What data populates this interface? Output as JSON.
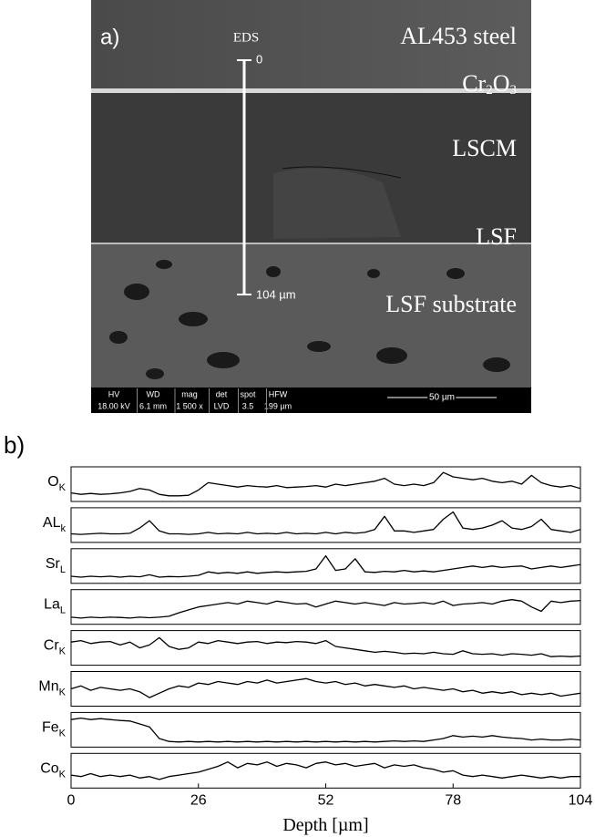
{
  "figure_a": {
    "panel_label": "a)",
    "eds_label": "EDS",
    "eds_start": "0",
    "eds_end": "104 µm",
    "layers": {
      "steel": "AL453 steel",
      "oxide_parts": [
        "Cr",
        "2",
        "O",
        "3"
      ],
      "lscm": "LSCM",
      "lsf": "LSF",
      "substrate": "LSF substrate"
    },
    "info_bar": {
      "headers": [
        "HV",
        "WD",
        "mag",
        "det",
        "spot",
        "HFW"
      ],
      "values": [
        "18.00 kV",
        "6.1 mm",
        "1 500 x",
        "LVD",
        "3.5",
        "199 µm"
      ]
    },
    "scale_bar": "50 µm"
  },
  "chart_data": {
    "type": "line",
    "panel_label": "b)",
    "xlabel": "Depth [µm]",
    "xlim": [
      0,
      104
    ],
    "xticks": [
      0,
      26,
      52,
      78,
      104
    ],
    "ylim": [
      0,
      1
    ],
    "color": "#000000",
    "x": [
      0,
      2,
      4,
      6,
      8,
      10,
      12,
      14,
      16,
      18,
      20,
      22,
      24,
      26,
      28,
      30,
      32,
      34,
      36,
      38,
      40,
      42,
      44,
      46,
      48,
      50,
      52,
      54,
      56,
      58,
      60,
      62,
      64,
      66,
      68,
      70,
      72,
      74,
      76,
      78,
      80,
      82,
      84,
      86,
      88,
      90,
      92,
      94,
      96,
      98,
      100,
      102,
      104
    ],
    "series": [
      {
        "name": "O",
        "subscript": "K",
        "values": [
          0.2,
          0.15,
          0.18,
          0.15,
          0.17,
          0.2,
          0.25,
          0.35,
          0.3,
          0.15,
          0.1,
          0.1,
          0.12,
          0.3,
          0.55,
          0.5,
          0.45,
          0.4,
          0.45,
          0.42,
          0.4,
          0.45,
          0.38,
          0.4,
          0.42,
          0.45,
          0.4,
          0.5,
          0.45,
          0.5,
          0.55,
          0.6,
          0.7,
          0.5,
          0.45,
          0.5,
          0.45,
          0.55,
          0.9,
          0.75,
          0.7,
          0.65,
          0.7,
          0.6,
          0.55,
          0.6,
          0.5,
          0.8,
          0.55,
          0.45,
          0.4,
          0.45,
          0.35
        ]
      },
      {
        "name": "AL",
        "subscript": "k",
        "values": [
          0.2,
          0.18,
          0.2,
          0.22,
          0.2,
          0.2,
          0.22,
          0.4,
          0.65,
          0.3,
          0.2,
          0.2,
          0.18,
          0.2,
          0.25,
          0.2,
          0.22,
          0.2,
          0.25,
          0.2,
          0.22,
          0.2,
          0.25,
          0.2,
          0.22,
          0.2,
          0.25,
          0.2,
          0.25,
          0.22,
          0.25,
          0.35,
          0.8,
          0.3,
          0.3,
          0.25,
          0.3,
          0.35,
          0.7,
          0.95,
          0.4,
          0.35,
          0.4,
          0.5,
          0.65,
          0.4,
          0.35,
          0.45,
          0.7,
          0.35,
          0.3,
          0.25,
          0.35
        ]
      },
      {
        "name": "Sr",
        "subscript": "L",
        "values": [
          0.15,
          0.12,
          0.15,
          0.13,
          0.15,
          0.12,
          0.15,
          0.13,
          0.2,
          0.12,
          0.14,
          0.13,
          0.15,
          0.18,
          0.3,
          0.25,
          0.28,
          0.25,
          0.3,
          0.25,
          0.28,
          0.3,
          0.28,
          0.3,
          0.32,
          0.4,
          0.85,
          0.35,
          0.4,
          0.75,
          0.3,
          0.28,
          0.32,
          0.3,
          0.35,
          0.3,
          0.33,
          0.3,
          0.35,
          0.4,
          0.45,
          0.5,
          0.45,
          0.5,
          0.45,
          0.48,
          0.5,
          0.4,
          0.45,
          0.5,
          0.45,
          0.5,
          0.55
        ]
      },
      {
        "name": "La",
        "subscript": "L",
        "values": [
          0.15,
          0.12,
          0.15,
          0.13,
          0.15,
          0.14,
          0.12,
          0.15,
          0.13,
          0.15,
          0.18,
          0.3,
          0.4,
          0.5,
          0.55,
          0.6,
          0.65,
          0.6,
          0.7,
          0.65,
          0.6,
          0.7,
          0.65,
          0.6,
          0.62,
          0.5,
          0.6,
          0.7,
          0.65,
          0.6,
          0.65,
          0.6,
          0.55,
          0.65,
          0.6,
          0.62,
          0.65,
          0.6,
          0.7,
          0.55,
          0.6,
          0.62,
          0.65,
          0.6,
          0.7,
          0.75,
          0.7,
          0.5,
          0.35,
          0.7,
          0.65,
          0.7,
          0.72
        ]
      },
      {
        "name": "Cr",
        "subscript": "K",
        "values": [
          0.7,
          0.75,
          0.65,
          0.7,
          0.72,
          0.6,
          0.7,
          0.5,
          0.6,
          0.85,
          0.55,
          0.45,
          0.5,
          0.7,
          0.65,
          0.75,
          0.7,
          0.65,
          0.7,
          0.72,
          0.65,
          0.7,
          0.68,
          0.72,
          0.7,
          0.65,
          0.75,
          0.55,
          0.5,
          0.45,
          0.4,
          0.35,
          0.38,
          0.35,
          0.3,
          0.32,
          0.3,
          0.35,
          0.3,
          0.28,
          0.4,
          0.3,
          0.28,
          0.3,
          0.25,
          0.3,
          0.28,
          0.25,
          0.3,
          0.2,
          0.22,
          0.2,
          0.22
        ]
      },
      {
        "name": "Mn",
        "subscript": "K",
        "values": [
          0.5,
          0.6,
          0.45,
          0.55,
          0.5,
          0.45,
          0.5,
          0.4,
          0.2,
          0.35,
          0.5,
          0.6,
          0.55,
          0.7,
          0.65,
          0.75,
          0.7,
          0.65,
          0.75,
          0.7,
          0.8,
          0.7,
          0.75,
          0.8,
          0.85,
          0.75,
          0.7,
          0.75,
          0.65,
          0.7,
          0.6,
          0.65,
          0.6,
          0.55,
          0.6,
          0.5,
          0.55,
          0.5,
          0.45,
          0.5,
          0.4,
          0.45,
          0.35,
          0.4,
          0.35,
          0.4,
          0.3,
          0.35,
          0.3,
          0.35,
          0.25,
          0.3,
          0.35
        ]
      },
      {
        "name": "Fe",
        "subscript": "K",
        "values": [
          0.85,
          0.9,
          0.85,
          0.88,
          0.85,
          0.82,
          0.8,
          0.7,
          0.6,
          0.2,
          0.1,
          0.08,
          0.1,
          0.08,
          0.1,
          0.08,
          0.1,
          0.08,
          0.1,
          0.08,
          0.1,
          0.08,
          0.1,
          0.08,
          0.1,
          0.08,
          0.1,
          0.08,
          0.1,
          0.08,
          0.1,
          0.08,
          0.1,
          0.12,
          0.1,
          0.12,
          0.1,
          0.15,
          0.2,
          0.3,
          0.25,
          0.28,
          0.25,
          0.3,
          0.25,
          0.22,
          0.2,
          0.15,
          0.18,
          0.15,
          0.15,
          0.18,
          0.15
        ]
      },
      {
        "name": "Co",
        "subscript": "K",
        "values": [
          0.35,
          0.3,
          0.4,
          0.3,
          0.35,
          0.3,
          0.35,
          0.25,
          0.3,
          0.2,
          0.3,
          0.35,
          0.4,
          0.45,
          0.55,
          0.65,
          0.8,
          0.6,
          0.75,
          0.7,
          0.8,
          0.65,
          0.75,
          0.7,
          0.6,
          0.75,
          0.8,
          0.7,
          0.75,
          0.65,
          0.7,
          0.75,
          0.6,
          0.7,
          0.65,
          0.7,
          0.6,
          0.55,
          0.45,
          0.5,
          0.35,
          0.3,
          0.35,
          0.3,
          0.25,
          0.3,
          0.35,
          0.3,
          0.25,
          0.3,
          0.25,
          0.3,
          0.3
        ]
      }
    ]
  }
}
